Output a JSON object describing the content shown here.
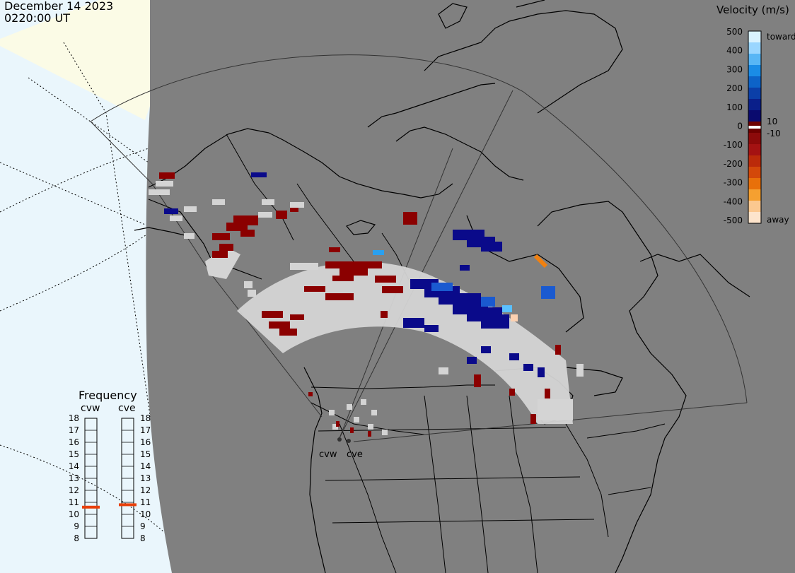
{
  "header": {
    "date": "December 14 2023",
    "time": "0220:00 UT"
  },
  "velocity_legend": {
    "title": "Velocity (m/s)",
    "ticks": [
      "500",
      "400",
      "300",
      "200",
      "100",
      "0",
      "-100",
      "-200",
      "-300",
      "-400",
      "-500"
    ],
    "labels": {
      "toward": "toward",
      "away": "away",
      "pos10": "10",
      "neg10": "-10"
    },
    "colors": [
      "#d9f2ff",
      "#9ad6ff",
      "#58b6f5",
      "#1a8ce6",
      "#0d63c8",
      "#0b3fa8",
      "#0a1f8a",
      "#0a0a6e",
      "#6e0000",
      "#8c0a0a",
      "#a41212",
      "#bb2a0a",
      "#d3480a",
      "#e8700a",
      "#f5a030",
      "#fbc890",
      "#fde4cc"
    ]
  },
  "frequency_panel": {
    "title": "Frequency",
    "radars": [
      "cvw",
      "cve"
    ],
    "scale": [
      "18",
      "17",
      "16",
      "15",
      "14",
      "13",
      "12",
      "11",
      "10",
      "9",
      "8"
    ],
    "current_mhz": {
      "cvw": 10.6,
      "cve": 10.8
    },
    "marker_color": "#e8400a"
  },
  "map": {
    "ocean_color": "#eaf6fc",
    "land_color": "#808080",
    "coast_color": "#000000",
    "radar_labels": [
      "cvw",
      "cve"
    ]
  }
}
